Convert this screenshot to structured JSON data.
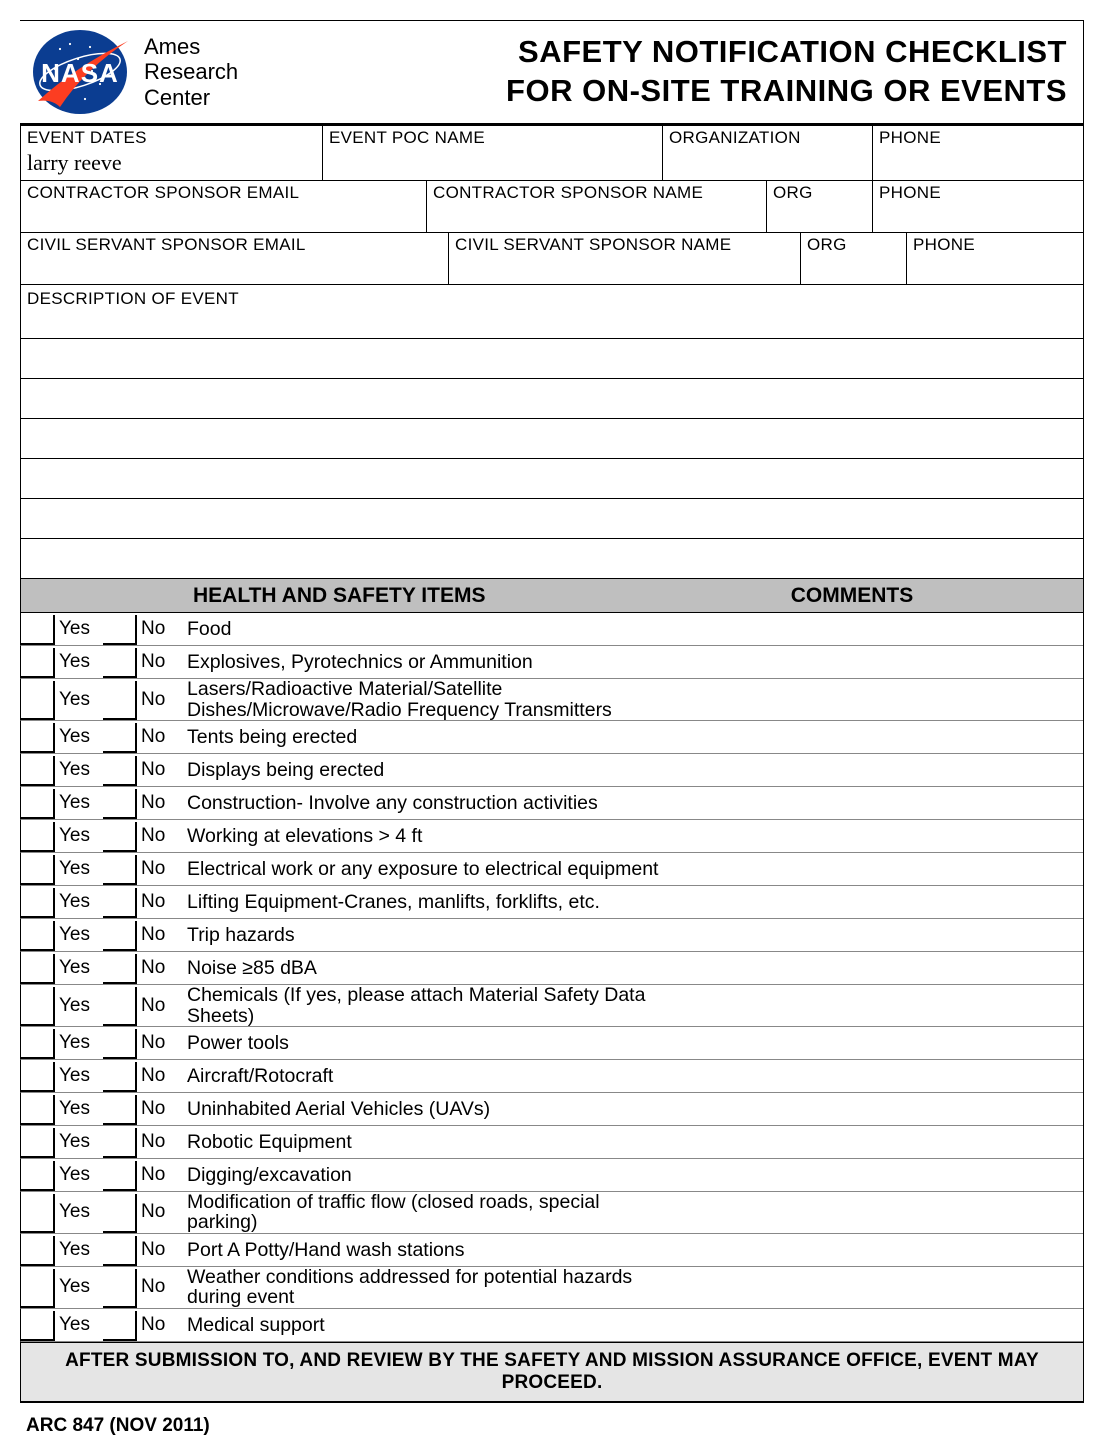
{
  "org_name_l1": "Ames",
  "org_name_l2": "Research",
  "org_name_l3": "Center",
  "title_l1": "SAFETY NOTIFICATION CHECKLIST",
  "title_l2": "FOR ON-SITE TRAINING OR EVENTS",
  "labels": {
    "event_dates": "EVENT DATES",
    "event_poc": "EVENT POC  NAME",
    "organization": "ORGANIZATION",
    "phone": "PHONE",
    "contractor_email": "CONTRACTOR  SPONSOR EMAIL",
    "contractor_name": "CONTRACTOR SPONSOR  NAME",
    "org": "ORG",
    "civil_email": "CIVIL SERVANT SPONSOR EMAIL",
    "civil_name": "CIVIL SERVANT SPONSOR NAME",
    "description": "DESCRIPTION OF EVENT"
  },
  "values": {
    "event_dates": "larry reeve"
  },
  "section": {
    "hs": "HEALTH AND SAFETY ITEMS",
    "comments": "COMMENTS"
  },
  "yes": "Yes",
  "no": "No",
  "items": [
    {
      "text": "Food",
      "tall": false
    },
    {
      "text": "Explosives, Pyrotechnics or Ammunition",
      "tall": false
    },
    {
      "text": "Lasers/Radioactive Material/Satellite Dishes/Microwave/Radio Frequency Transmitters",
      "tall": true
    },
    {
      "text": "Tents being erected",
      "tall": false
    },
    {
      "text": "Displays being erected",
      "tall": false
    },
    {
      "text": "Construction- Involve any construction activities",
      "tall": false
    },
    {
      "text": "Working at elevations > 4 ft",
      "tall": false
    },
    {
      "text": "Electrical work or any exposure to electrical equipment",
      "tall": false
    },
    {
      "text": "Lifting Equipment-Cranes, manlifts, forklifts, etc.",
      "tall": false
    },
    {
      "text": "Trip hazards",
      "tall": false
    },
    {
      "text": "Noise ≥85 dBA",
      "tall": false
    },
    {
      "text": "Chemicals (If yes, please attach Material Safety Data Sheets)",
      "tall": true
    },
    {
      "text": "Power tools",
      "tall": false
    },
    {
      "text": "Aircraft/Rotocraft",
      "tall": false
    },
    {
      "text": "Uninhabited Aerial Vehicles (UAVs)",
      "tall": false
    },
    {
      "text": "Robotic Equipment",
      "tall": false
    },
    {
      "text": "Digging/excavation",
      "tall": false
    },
    {
      "text": "Modification of traffic flow (closed roads, special parking)",
      "tall": false
    },
    {
      "text": "Port A Potty/Hand wash stations",
      "tall": false
    },
    {
      "text": "Weather conditions addressed for potential hazards during event",
      "tall": true
    },
    {
      "text": "Medical support",
      "tall": false
    }
  ],
  "footer": "AFTER SUBMISSION TO, AND REVIEW BY THE SAFETY AND MISSION ASSURANCE OFFICE, EVENT MAY PROCEED.",
  "form_id": "ARC 847  (NOV 2011)",
  "colors": {
    "nasa_blue": "#0b3d91",
    "nasa_red": "#fc3d21"
  }
}
